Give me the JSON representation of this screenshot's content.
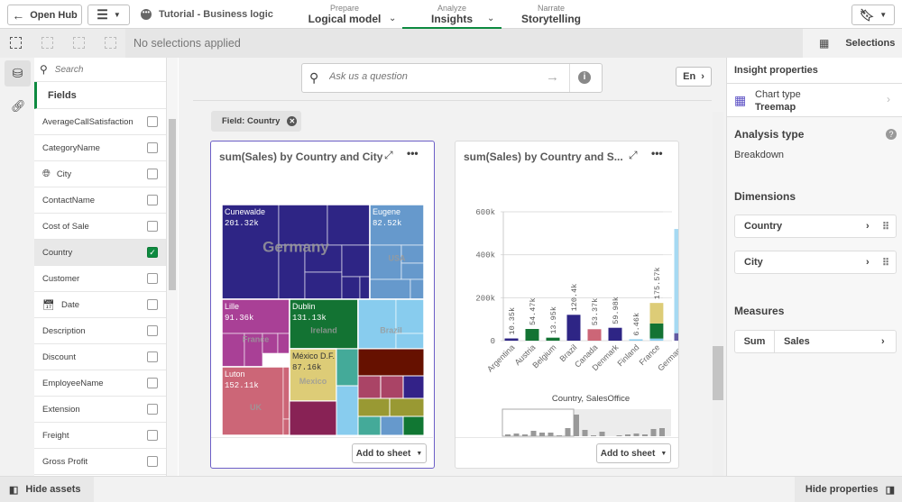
{
  "topbar": {
    "open_hub": "Open Hub",
    "app_title": "Tutorial - Business logic",
    "tabs": [
      {
        "sub": "Prepare",
        "label": "Logical model"
      },
      {
        "sub": "Analyze",
        "label": "Insights"
      },
      {
        "sub": "Narrate",
        "label": "Storytelling"
      }
    ]
  },
  "selections": {
    "status": "No selections applied",
    "selections_label": "Selections"
  },
  "assets": {
    "search_placeholder": "Search",
    "fields_heading": "Fields",
    "fields": [
      {
        "label": "AverageCallSatisfaction",
        "checked": false
      },
      {
        "label": "CategoryName",
        "checked": false
      },
      {
        "label": "City",
        "checked": false,
        "icon": "globe-icon"
      },
      {
        "label": "ContactName",
        "checked": false
      },
      {
        "label": "Cost of Sale",
        "checked": false
      },
      {
        "label": "Country",
        "checked": true
      },
      {
        "label": "Customer",
        "checked": false
      },
      {
        "label": "Date",
        "checked": false,
        "icon": "calendar-icon"
      },
      {
        "label": "Description",
        "checked": false
      },
      {
        "label": "Discount",
        "checked": false
      },
      {
        "label": "EmployeeName",
        "checked": false
      },
      {
        "label": "Extension",
        "checked": false
      },
      {
        "label": "Freight",
        "checked": false
      },
      {
        "label": "Gross Profit",
        "checked": false
      }
    ]
  },
  "main": {
    "ask_placeholder": "Ask us a question",
    "lang": "En",
    "filter_chip": "Field: Country",
    "add_to_sheet": "Add to sheet",
    "treemap": {
      "title": "sum(Sales) by Country and City",
      "countries": [
        {
          "name": "Germany",
          "city": "Cunewalde",
          "value": "201.32k",
          "color": "#2e2585"
        },
        {
          "name": "USA",
          "city": "Eugene",
          "value": "82.52k",
          "color": "#6699cc"
        },
        {
          "name": "France",
          "city": "Lille",
          "value": "91.36k",
          "color": "#a94096"
        },
        {
          "name": "Ireland",
          "city": "Dublin",
          "value": "131.13k",
          "color": "#137333"
        },
        {
          "name": "Brazil",
          "city": "",
          "value": "",
          "color": "#88ccee"
        },
        {
          "name": "Mexico",
          "city": "México D.F.",
          "value": "87.16k",
          "color": "#ddcc77"
        },
        {
          "name": "UK",
          "city": "Luton",
          "value": "152.11k",
          "color": "#cc6677"
        }
      ]
    }
  },
  "chart_data": {
    "type": "bar",
    "title": "sum(Sales) by Country and S...",
    "xlabel": "Country, SalesOffice",
    "ylim": [
      0,
      600000
    ],
    "yticks": [
      "0",
      "200k",
      "400k",
      "600k"
    ],
    "grid": true,
    "categories": [
      "Argentina",
      "Austria",
      "Belgium",
      "Brazil",
      "Canada",
      "Denmark",
      "Finland",
      "France",
      "Germany"
    ],
    "labels": [
      "10.35k",
      "54.47k",
      "13.95k",
      "120.4k",
      "53.37k",
      "59.98k",
      "6.46k",
      "175.57k",
      ""
    ],
    "stacks": [
      [
        {
          "v": 10350,
          "c": "#2e2585"
        }
      ],
      [
        {
          "v": 54470,
          "c": "#137333"
        }
      ],
      [
        {
          "v": 13950,
          "c": "#137333"
        }
      ],
      [
        {
          "v": 120400,
          "c": "#2e2585"
        }
      ],
      [
        {
          "v": 53370,
          "c": "#cc6677"
        }
      ],
      [
        {
          "v": 59980,
          "c": "#2e2585"
        }
      ],
      [
        {
          "v": 6460,
          "c": "#88ccee"
        }
      ],
      [
        {
          "v": 10000,
          "c": "#88ccee"
        },
        {
          "v": 70000,
          "c": "#137333"
        },
        {
          "v": 95570,
          "c": "#ddcc77"
        }
      ],
      [
        {
          "v": 35000,
          "c": "#2e2585"
        },
        {
          "v": 485000,
          "c": "#88ccee"
        }
      ]
    ]
  },
  "properties": {
    "heading": "Insight properties",
    "chart_type_label": "Chart type",
    "chart_type_value": "Treemap",
    "analysis_type": "Analysis type",
    "analysis_value": "Breakdown",
    "dimensions": "Dimensions",
    "dims": [
      "Country",
      "City"
    ],
    "measures": "Measures",
    "measure_agg": "Sum",
    "measure_field": "Sales"
  },
  "bottom": {
    "hide_assets": "Hide assets",
    "hide_properties": "Hide properties"
  }
}
